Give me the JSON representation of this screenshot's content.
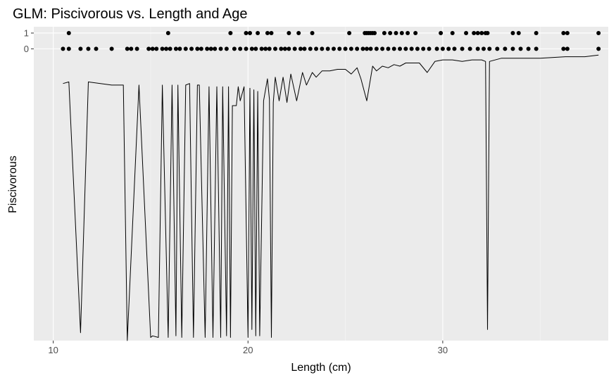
{
  "chart_data": {
    "type": "scatter",
    "title": "GLM: Piscivorous vs. Length and Age",
    "xlabel": "Length (cm)",
    "ylabel": "Piscivorous",
    "xlim": [
      9,
      38.5
    ],
    "ylim": [
      -18.5,
      1.4
    ],
    "x_ticks": [
      10,
      20,
      30
    ],
    "y_ticks": [
      0,
      1
    ],
    "grid": true,
    "legend": "none",
    "colors": {
      "panel": "#ebebeb",
      "grid_major": "#ffffff",
      "points": "#000000",
      "line": "#000000"
    },
    "series": [
      {
        "kind": "points",
        "y": 1,
        "x": [
          10.8,
          15.9,
          19.1,
          19.9,
          20.1,
          20.5,
          21.0,
          21.2,
          22.1,
          22.6,
          23.3,
          25.2,
          26.0,
          26.1,
          26.2,
          26.3,
          26.4,
          26.5,
          27.0,
          27.3,
          27.6,
          27.9,
          28.2,
          28.6,
          29.9,
          30.5,
          31.2,
          31.6,
          31.8,
          32.0,
          32.2,
          32.3,
          33.6,
          33.9,
          34.8,
          36.2,
          36.4,
          38.0
        ]
      },
      {
        "kind": "points",
        "y": 0,
        "x": [
          10.5,
          10.8,
          11.4,
          11.8,
          12.2,
          13.0,
          13.8,
          14.0,
          14.3,
          14.9,
          15.1,
          15.3,
          15.6,
          15.8,
          16.0,
          16.3,
          16.5,
          16.8,
          17.1,
          17.4,
          17.6,
          17.9,
          18.1,
          18.3,
          18.6,
          18.9,
          19.3,
          19.6,
          19.9,
          20.2,
          20.4,
          20.7,
          20.9,
          21.1,
          21.4,
          21.7,
          21.9,
          22.1,
          22.4,
          22.7,
          22.9,
          23.2,
          23.5,
          23.8,
          24.1,
          24.4,
          24.7,
          25.0,
          25.3,
          25.6,
          25.9,
          26.1,
          26.3,
          26.6,
          26.9,
          27.2,
          27.5,
          27.8,
          28.1,
          28.4,
          28.7,
          29.0,
          29.3,
          29.7,
          30.0,
          30.3,
          30.6,
          31.0,
          31.4,
          31.8,
          32.1,
          32.4,
          32.8,
          33.2,
          33.6,
          34.0,
          34.4,
          34.8,
          36.2,
          36.4,
          38.0
        ]
      },
      {
        "kind": "line",
        "x": [
          10.5,
          10.8,
          11.4,
          11.8,
          13.0,
          13.6,
          13.8,
          14.4,
          15.0,
          15.1,
          15.4,
          15.6,
          15.9,
          16.1,
          16.3,
          16.4,
          16.6,
          16.8,
          17.0,
          17.2,
          17.4,
          17.5,
          17.8,
          18.0,
          18.2,
          18.4,
          18.6,
          18.7,
          18.9,
          19.0,
          19.1,
          19.2,
          19.4,
          19.5,
          19.6,
          19.8,
          20.0,
          20.1,
          20.2,
          20.3,
          20.4,
          20.5,
          20.6,
          20.8,
          21.0,
          21.1,
          21.2,
          21.3,
          21.4,
          21.6,
          21.8,
          22.0,
          22.2,
          22.5,
          22.8,
          23.0,
          23.3,
          23.5,
          23.8,
          24.2,
          24.6,
          25.0,
          25.3,
          25.6,
          25.8,
          26.1,
          26.4,
          26.6,
          26.9,
          27.2,
          27.5,
          27.8,
          28.1,
          28.4,
          28.8,
          29.2,
          29.6,
          30.0,
          30.5,
          31.0,
          31.5,
          32.0,
          32.2,
          32.3,
          32.4,
          33.0,
          33.7,
          34.2,
          35.0,
          36.3,
          37.3,
          38.0
        ],
        "y": [
          -2.2,
          -2.1,
          -18.0,
          -2.1,
          -2.3,
          -2.3,
          -18.5,
          -2.3,
          -18.3,
          -18.2,
          -18.3,
          -2.3,
          -18.3,
          -2.3,
          -18.2,
          -2.3,
          -18.3,
          -2.3,
          -2.2,
          -18.3,
          -2.3,
          -2.3,
          -18.3,
          -2.4,
          -18.3,
          -2.4,
          -18.3,
          -2.4,
          -18.2,
          -2.4,
          -18.3,
          -3.6,
          -3.6,
          -2.4,
          -3.3,
          -2.4,
          -18.3,
          -2.5,
          -17.8,
          -2.6,
          -18.2,
          -2.7,
          -18.2,
          -3.3,
          -1.9,
          -3.2,
          -18.3,
          -3.4,
          -1.8,
          -3.3,
          -1.8,
          -3.4,
          -1.6,
          -3.3,
          -1.5,
          -2.3,
          -1.5,
          -1.8,
          -1.4,
          -1.4,
          -1.3,
          -1.3,
          -1.6,
          -1.2,
          -1.9,
          -3.3,
          -1.1,
          -1.4,
          -1.1,
          -1.2,
          -1.0,
          -1.1,
          -0.9,
          -0.9,
          -0.9,
          -1.5,
          -0.8,
          -0.7,
          -0.7,
          -0.8,
          -0.7,
          -0.7,
          -0.8,
          -17.8,
          -0.8,
          -0.6,
          -0.6,
          -0.6,
          -0.6,
          -0.5,
          -0.5,
          -0.4
        ]
      }
    ]
  }
}
